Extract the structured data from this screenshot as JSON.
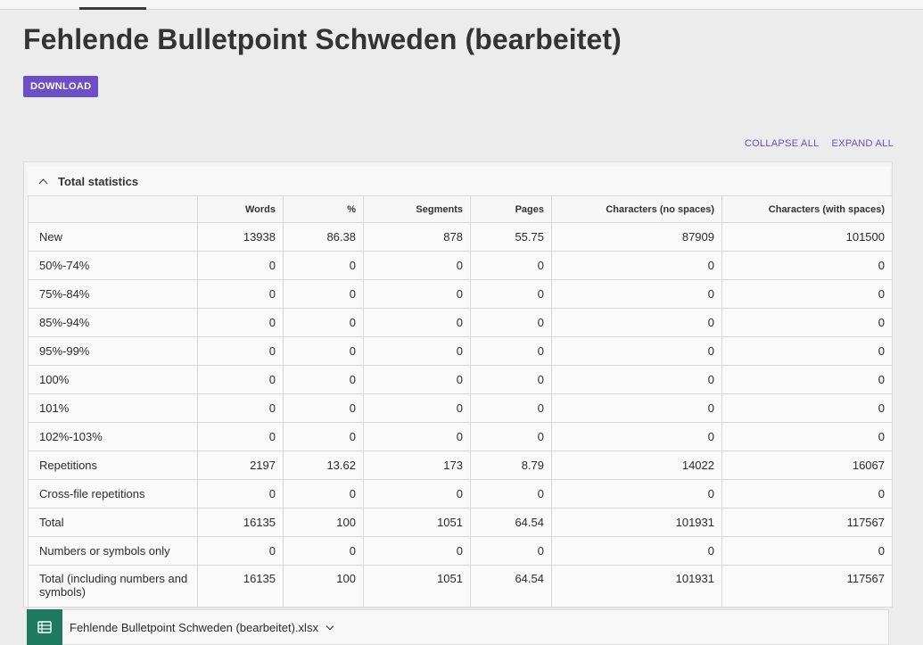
{
  "page": {
    "title": "Fehlende Bulletpoint Schweden (bearbeitet)"
  },
  "actions": {
    "download_label": "DOWNLOAD",
    "collapse_all": "COLLAPSE ALL",
    "expand_all": "EXPAND ALL"
  },
  "stats": {
    "section_title": "Total statistics",
    "columns": [
      "",
      "Words",
      "%",
      "Segments",
      "Pages",
      "Characters (no spaces)",
      "Characters (with spaces)"
    ],
    "rows": [
      [
        "New",
        "13938",
        "86.38",
        "878",
        "55.75",
        "87909",
        "101500"
      ],
      [
        "50%-74%",
        "0",
        "0",
        "0",
        "0",
        "0",
        "0"
      ],
      [
        "75%-84%",
        "0",
        "0",
        "0",
        "0",
        "0",
        "0"
      ],
      [
        "85%-94%",
        "0",
        "0",
        "0",
        "0",
        "0",
        "0"
      ],
      [
        "95%-99%",
        "0",
        "0",
        "0",
        "0",
        "0",
        "0"
      ],
      [
        "100%",
        "0",
        "0",
        "0",
        "0",
        "0",
        "0"
      ],
      [
        "101%",
        "0",
        "0",
        "0",
        "0",
        "0",
        "0"
      ],
      [
        "102%-103%",
        "0",
        "0",
        "0",
        "0",
        "0",
        "0"
      ],
      [
        "Repetitions",
        "2197",
        "13.62",
        "173",
        "8.79",
        "14022",
        "16067"
      ],
      [
        "Cross-file repetitions",
        "0",
        "0",
        "0",
        "0",
        "0",
        "0"
      ],
      [
        "Total",
        "16135",
        "100",
        "1051",
        "64.54",
        "101931",
        "117567"
      ],
      [
        "Numbers or symbols only",
        "0",
        "0",
        "0",
        "0",
        "0",
        "0"
      ],
      [
        "Total (including numbers and symbols)",
        "16135",
        "100",
        "1051",
        "64.54",
        "101931",
        "117567"
      ]
    ]
  },
  "file": {
    "name": "Fehlende Bulletpoint Schweden (bearbeitet).xlsx",
    "icon": "spreadsheet-icon"
  },
  "colors": {
    "accent": "#6c4fc7",
    "file_icon_bg": "#1d7a5f",
    "background": "#ececec"
  },
  "icons": {
    "section_toggle": "chevron-up-icon",
    "file_menu": "chevron-down-icon"
  }
}
